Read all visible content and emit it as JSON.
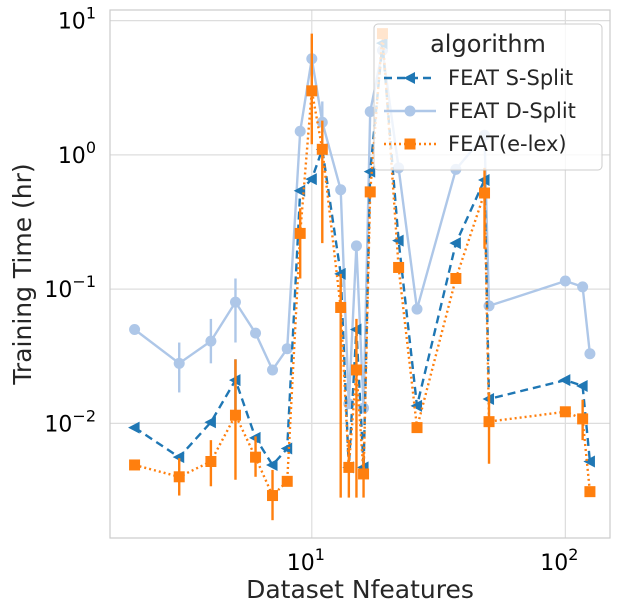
{
  "chart_data": {
    "type": "line",
    "xlabel": "Dataset Nfeatures",
    "ylabel": "Training Time (hr)",
    "xscale": "log",
    "yscale": "log",
    "xlim": [
      1.6,
      150
    ],
    "ylim": [
      0.0014,
      12
    ],
    "grid": true,
    "legend_title": "algorithm",
    "legend_placement": "top-right",
    "x_ticks": [
      {
        "value": 10,
        "base": "10",
        "exp": "1"
      },
      {
        "value": 100,
        "base": "10",
        "exp": "2"
      }
    ],
    "y_ticks": [
      {
        "value": 0.01,
        "base": "10",
        "exp": "−2"
      },
      {
        "value": 0.1,
        "base": "10",
        "exp": "−1"
      },
      {
        "value": 1,
        "base": "10",
        "exp": "0"
      },
      {
        "value": 10,
        "base": "10",
        "exp": "1"
      }
    ],
    "series": [
      {
        "name": "FEAT D-Split",
        "color": "#aec7e8",
        "dash": "",
        "marker": "circle",
        "points": [
          {
            "x": 2,
            "y": 0.05
          },
          {
            "x": 3,
            "y": 0.028,
            "lo": 0.017,
            "hi": 0.04
          },
          {
            "x": 4,
            "y": 0.041,
            "lo": 0.028,
            "hi": 0.06
          },
          {
            "x": 5,
            "y": 0.08,
            "lo": 0.04,
            "hi": 0.12
          },
          {
            "x": 6,
            "y": 0.047
          },
          {
            "x": 7,
            "y": 0.025
          },
          {
            "x": 8,
            "y": 0.036
          },
          {
            "x": 9,
            "y": 1.5
          },
          {
            "x": 10,
            "y": 5.2,
            "lo": 2.0,
            "hi": 7.5
          },
          {
            "x": 11,
            "y": 1.75,
            "lo": 1.0,
            "hi": 2.5
          },
          {
            "x": 13,
            "y": 0.55
          },
          {
            "x": 14,
            "y": 0.014
          },
          {
            "x": 15,
            "y": 0.21
          },
          {
            "x": 16,
            "y": 0.013
          },
          {
            "x": 17,
            "y": 2.1
          },
          {
            "x": 19,
            "y": 6.0
          },
          {
            "x": 22,
            "y": 0.8
          },
          {
            "x": 26,
            "y": 0.071
          },
          {
            "x": 37,
            "y": 0.78
          },
          {
            "x": 48,
            "y": 1.4
          },
          {
            "x": 50,
            "y": 0.075
          },
          {
            "x": 100,
            "y": 0.115
          },
          {
            "x": 117,
            "y": 0.104
          },
          {
            "x": 125,
            "y": 0.033
          }
        ]
      },
      {
        "name": "FEAT S-Split",
        "color": "#1f77b4",
        "dash": "8,5",
        "marker": "triangle-left",
        "points": [
          {
            "x": 2,
            "y": 0.0093
          },
          {
            "x": 3,
            "y": 0.0056
          },
          {
            "x": 4,
            "y": 0.0102
          },
          {
            "x": 5,
            "y": 0.021,
            "lo": 0.012,
            "hi": 0.03
          },
          {
            "x": 6,
            "y": 0.0078
          },
          {
            "x": 7,
            "y": 0.0049
          },
          {
            "x": 8,
            "y": 0.0065
          },
          {
            "x": 9,
            "y": 0.54
          },
          {
            "x": 10,
            "y": 0.66
          },
          {
            "x": 11,
            "y": 1.1
          },
          {
            "x": 13,
            "y": 0.13
          },
          {
            "x": 14,
            "y": 0.0047
          },
          {
            "x": 15,
            "y": 0.05
          },
          {
            "x": 16,
            "y": 0.0047
          },
          {
            "x": 17,
            "y": 0.75
          },
          {
            "x": 19,
            "y": 6.8
          },
          {
            "x": 22,
            "y": 0.23
          },
          {
            "x": 26,
            "y": 0.0135
          },
          {
            "x": 37,
            "y": 0.22
          },
          {
            "x": 48,
            "y": 0.65
          },
          {
            "x": 50,
            "y": 0.0152
          },
          {
            "x": 100,
            "y": 0.021
          },
          {
            "x": 117,
            "y": 0.019
          },
          {
            "x": 125,
            "y": 0.0052
          }
        ]
      },
      {
        "name": "FEAT(e-lex)",
        "color": "#ff7f0e",
        "dash": "2,3",
        "marker": "square",
        "points": [
          {
            "x": 2,
            "y": 0.0049
          },
          {
            "x": 3,
            "y": 0.004,
            "lo": 0.0029,
            "hi": 0.0055
          },
          {
            "x": 4,
            "y": 0.0052,
            "lo": 0.0034,
            "hi": 0.0075
          },
          {
            "x": 5,
            "y": 0.0115,
            "lo": 0.0038,
            "hi": 0.03
          },
          {
            "x": 6,
            "y": 0.0056,
            "lo": 0.004,
            "hi": 0.008
          },
          {
            "x": 7,
            "y": 0.0029,
            "lo": 0.0019,
            "hi": 0.0045
          },
          {
            "x": 8,
            "y": 0.0037
          },
          {
            "x": 9,
            "y": 0.26,
            "lo": 0.12,
            "hi": 0.4
          },
          {
            "x": 10,
            "y": 3.0,
            "lo": 1.2,
            "hi": 8.0
          },
          {
            "x": 11,
            "y": 1.1,
            "lo": 0.22,
            "hi": 1.8
          },
          {
            "x": 13,
            "y": 0.073,
            "lo": 0.0028,
            "hi": 0.13
          },
          {
            "x": 14,
            "y": 0.0047,
            "lo": 0.0028,
            "hi": 0.0075
          },
          {
            "x": 15,
            "y": 0.025,
            "lo": 0.0028,
            "hi": 0.06
          },
          {
            "x": 16,
            "y": 0.0042,
            "lo": 0.0028,
            "hi": 0.006
          },
          {
            "x": 17,
            "y": 0.53
          },
          {
            "x": 19,
            "y": 8.0
          },
          {
            "x": 22,
            "y": 0.145
          },
          {
            "x": 26,
            "y": 0.0093
          },
          {
            "x": 37,
            "y": 0.12
          },
          {
            "x": 48,
            "y": 0.52,
            "lo": 0.2,
            "hi": 0.8
          },
          {
            "x": 50,
            "y": 0.0103,
            "lo": 0.005,
            "hi": 0.017
          },
          {
            "x": 100,
            "y": 0.0122
          },
          {
            "x": 117,
            "y": 0.0108,
            "lo": 0.0075,
            "hi": 0.015
          },
          {
            "x": 125,
            "y": 0.0031
          }
        ]
      }
    ],
    "legend_order": [
      "FEAT S-Split",
      "FEAT D-Split",
      "FEAT(e-lex)"
    ]
  }
}
